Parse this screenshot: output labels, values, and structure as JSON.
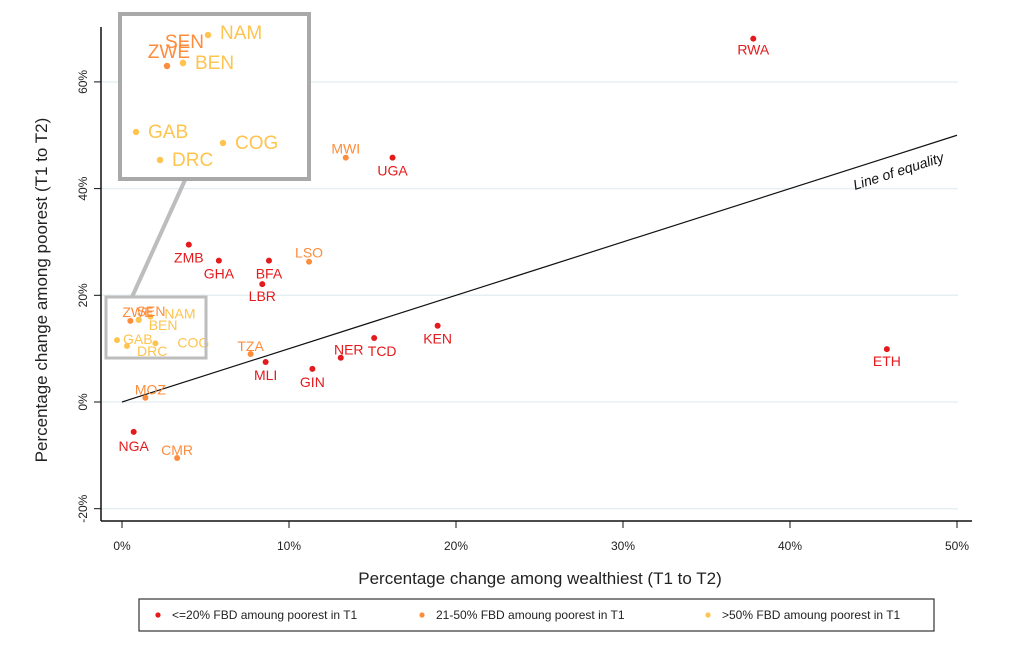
{
  "chart_data": {
    "type": "scatter",
    "title": "",
    "xlabel": "Percentage change among wealthiest (T1 to T2)",
    "ylabel": "Percentage change among poorest (T1 to T2)",
    "xlim": [
      -1,
      51
    ],
    "ylim": [
      -22,
      74
    ],
    "x_ticks": [
      0,
      10,
      20,
      30,
      40,
      50
    ],
    "x_tick_labels": [
      "0%",
      "10%",
      "20%",
      "30%",
      "40%",
      "50%"
    ],
    "y_ticks": [
      -20,
      0,
      20,
      40,
      60
    ],
    "y_tick_labels": [
      "-20%",
      "0%",
      "20%",
      "40%",
      "60%"
    ],
    "grid": "horizontal",
    "reference_line": {
      "label": "Line of equality",
      "from": [
        0,
        0
      ],
      "to": [
        50,
        50
      ]
    },
    "legend_position": "bottom",
    "groups": [
      {
        "key": "low",
        "name": "<=20% FBD amoung poorest in T1",
        "color": "#e41a1c"
      },
      {
        "key": "mid",
        "name": "21-50% FBD amoung poorest in T1",
        "color": "#fd8d3c"
      },
      {
        "key": "high",
        "name": ">50% FBD amoung poorest in T1",
        "color": "#fec44f"
      }
    ],
    "points": [
      {
        "label": "RWA",
        "x": 37.8,
        "y": 68.1,
        "group": "low"
      },
      {
        "label": "ETH",
        "x": 45.8,
        "y": 9.9,
        "group": "low"
      },
      {
        "label": "UGA",
        "x": 16.2,
        "y": 45.8,
        "group": "low"
      },
      {
        "label": "MWI",
        "x": 13.4,
        "y": 45.8,
        "group": "mid"
      },
      {
        "label": "ZMB",
        "x": 4.0,
        "y": 29.5,
        "group": "low"
      },
      {
        "label": "GHA",
        "x": 5.8,
        "y": 26.5,
        "group": "low"
      },
      {
        "label": "BFA",
        "x": 8.8,
        "y": 26.5,
        "group": "low"
      },
      {
        "label": "LBR",
        "x": 8.4,
        "y": 22.1,
        "group": "low"
      },
      {
        "label": "LSO",
        "x": 11.2,
        "y": 26.3,
        "group": "mid"
      },
      {
        "label": "TZA",
        "x": 7.7,
        "y": 9.0,
        "group": "mid"
      },
      {
        "label": "MLI",
        "x": 8.6,
        "y": 7.5,
        "group": "low"
      },
      {
        "label": "GIN",
        "x": 11.4,
        "y": 6.2,
        "group": "low"
      },
      {
        "label": "NER",
        "x": 13.1,
        "y": 8.3,
        "group": "low"
      },
      {
        "label": "TCD",
        "x": 15.1,
        "y": 12.0,
        "group": "low"
      },
      {
        "label": "KEN",
        "x": 18.9,
        "y": 14.3,
        "group": "low"
      },
      {
        "label": "MOZ",
        "x": 1.4,
        "y": 0.8,
        "group": "mid"
      },
      {
        "label": "NGA",
        "x": 0.7,
        "y": -5.6,
        "group": "low"
      },
      {
        "label": "CMR",
        "x": 3.3,
        "y": -10.5,
        "group": "mid"
      },
      {
        "label": "ZWE",
        "x": 0.5,
        "y": 15.2,
        "group": "mid"
      },
      {
        "label": "SEN",
        "x": 1.0,
        "y": 15.4,
        "group": "mid"
      },
      {
        "label": "BEN",
        "x": 1.0,
        "y": 15.4,
        "group": "high"
      },
      {
        "label": "NAM",
        "x": 1.7,
        "y": 16.0,
        "group": "high"
      },
      {
        "label": "GAB",
        "x": -0.3,
        "y": 11.6,
        "group": "high"
      },
      {
        "label": "DRC",
        "x": 0.3,
        "y": 10.5,
        "group": "high"
      },
      {
        "label": "COG",
        "x": 2.0,
        "y": 11.0,
        "group": "high"
      }
    ],
    "inset": {
      "labels": [
        "SEN",
        "NAM",
        "ZWE",
        "BEN",
        "GAB",
        "COG",
        "DRC"
      ],
      "description": "magnified view of clustered countries"
    }
  }
}
